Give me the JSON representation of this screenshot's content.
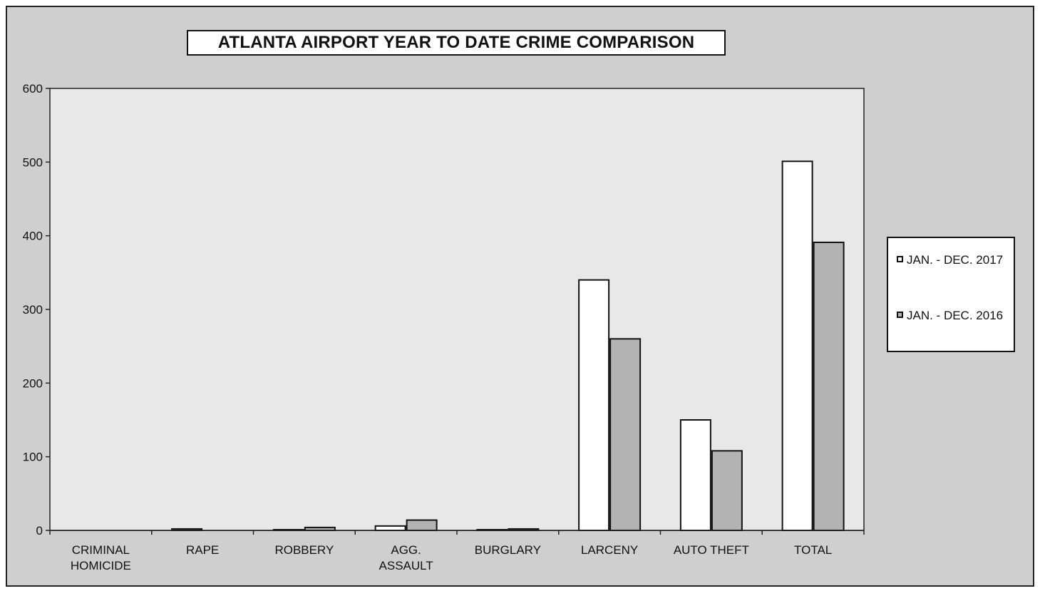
{
  "chart_data": {
    "type": "bar",
    "title": "ATLANTA AIRPORT YEAR TO DATE CRIME COMPARISON",
    "categories": [
      "CRIMINAL\nHOMICIDE",
      "RAPE",
      "ROBBERY",
      "AGG.\nASSAULT",
      "BURGLARY",
      "LARCENY",
      "AUTO THEFT",
      "TOTAL"
    ],
    "series": [
      {
        "name": "JAN. - DEC. 2017",
        "values": [
          0,
          2,
          1,
          6,
          1,
          340,
          150,
          501
        ],
        "color": "#ffffff"
      },
      {
        "name": "JAN. - DEC. 2016",
        "values": [
          0,
          0,
          4,
          14,
          2,
          260,
          108,
          391
        ],
        "color": "#b3b3b3"
      }
    ],
    "xlabel": "",
    "ylabel": "",
    "ylim": [
      0,
      600
    ],
    "yticks": [
      0,
      100,
      200,
      300,
      400,
      500,
      600
    ],
    "grid": false,
    "legend_position": "right",
    "colors": {
      "frame_bg": "#cfcfcf",
      "plot_bg": "#e8e8e8",
      "series_2017": "#ffffff",
      "series_2016": "#b3b3b3"
    }
  }
}
